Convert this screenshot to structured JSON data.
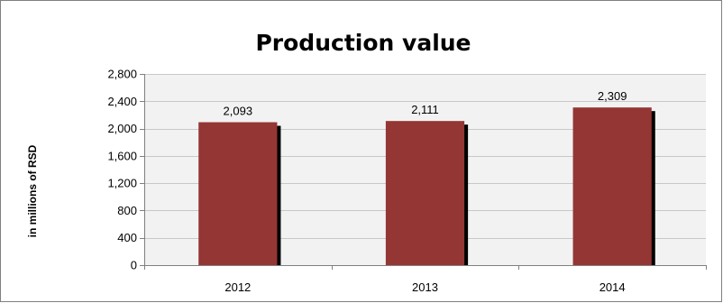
{
  "chart_data": {
    "type": "bar",
    "title": "Production value",
    "ylabel": "in millions of RSD",
    "xlabel": "",
    "categories": [
      "2012",
      "2013",
      "2014"
    ],
    "values": [
      2093,
      2111,
      2309
    ],
    "data_labels": [
      "2,093",
      "2,111",
      "2,309"
    ],
    "ylim": [
      0,
      2800
    ],
    "yticks": [
      0,
      400,
      800,
      1200,
      1600,
      2000,
      2400,
      2800
    ],
    "ytick_labels": [
      "0",
      "400",
      "800",
      "1,200",
      "1,600",
      "2,000",
      "2,400",
      "2,800"
    ],
    "grid": true,
    "legend": "none",
    "colors": {
      "bar": "#943634",
      "bar_shadow": "#000000",
      "plot_background": "#f2f2f2",
      "gridline": "#c8c8c8"
    }
  }
}
